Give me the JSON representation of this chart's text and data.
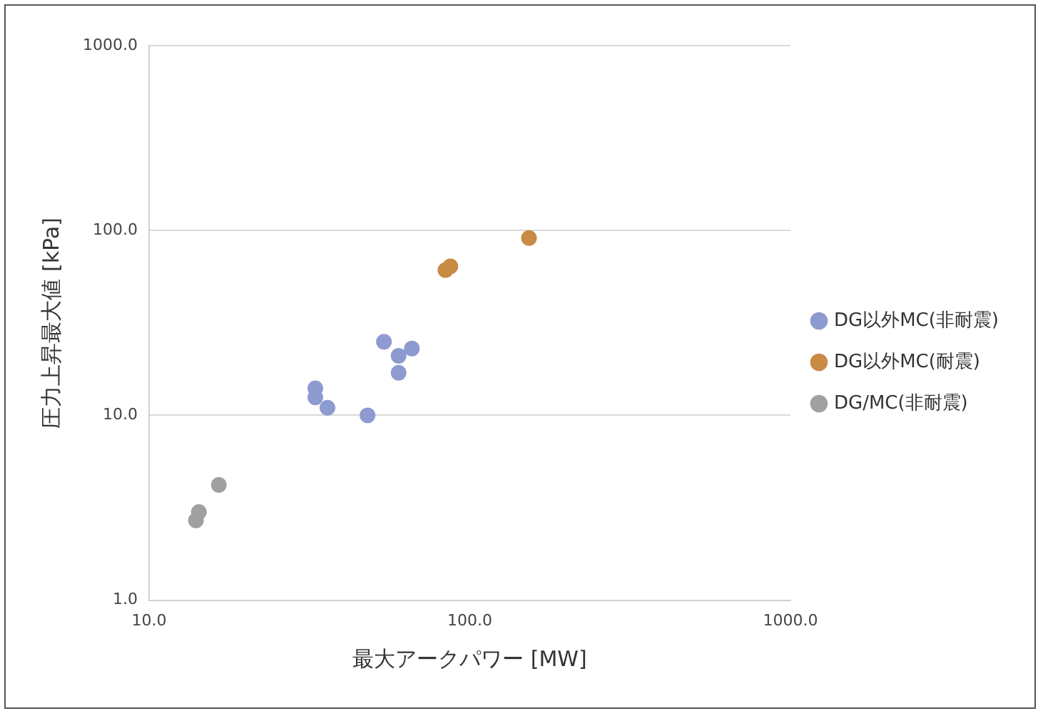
{
  "chart_data": {
    "type": "scatter",
    "xlabel": "最大アークパワー [MW]",
    "ylabel": "圧力上昇最大値 [kPa]",
    "log": "xy",
    "grid": "y",
    "legend": "right",
    "marker": "circle",
    "xlim": [
      10,
      1000
    ],
    "ylim": [
      1,
      1000
    ],
    "xticks": [
      {
        "value": 10,
        "label": "10.0"
      },
      {
        "value": 100,
        "label": "100.0"
      },
      {
        "value": 1000,
        "label": "1000.0"
      }
    ],
    "yticks": [
      {
        "value": 1,
        "label": "1.0"
      },
      {
        "value": 10,
        "label": "10.0"
      },
      {
        "value": 100,
        "label": "100.0"
      },
      {
        "value": 1000,
        "label": "1000.0"
      }
    ],
    "series": [
      {
        "name": "DG以外MC(非耐震)",
        "color": "#8e9bd0",
        "x": [
          54,
          66,
          60,
          60,
          33,
          33,
          36,
          48
        ],
        "values": [
          25,
          23,
          21,
          17,
          14,
          12.5,
          11,
          10
        ]
      },
      {
        "name": "DG以外MC(耐震)",
        "color": "#c98a45",
        "x": [
          84,
          87,
          153
        ],
        "values": [
          61,
          64,
          91
        ]
      },
      {
        "name": "DG/MC(非耐震)",
        "color": "#a0a0a0",
        "x": [
          16.5,
          14,
          14.3
        ],
        "values": [
          4.2,
          2.7,
          3
        ]
      }
    ]
  }
}
